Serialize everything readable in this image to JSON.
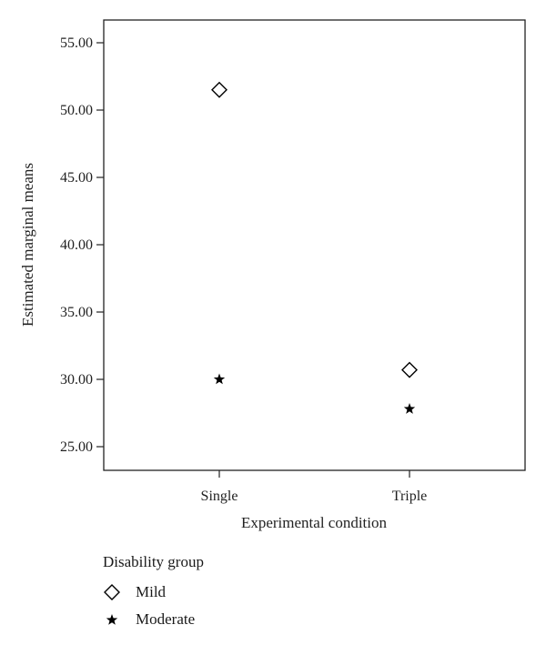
{
  "chart_data": {
    "type": "scatter",
    "categories": [
      "Single",
      "Triple"
    ],
    "xlabel": "Experimental condition",
    "ylabel": "Estimated marginal means",
    "ylim": [
      23.3,
      57.6
    ],
    "yticks": [
      "25.00",
      "30.00",
      "35.00",
      "40.00",
      "45.00",
      "50.00",
      "55.00"
    ],
    "grid": false,
    "legend": {
      "title": "Disability group",
      "placement": "bottom-left"
    },
    "series": [
      {
        "name": "Mild",
        "marker": "diamond",
        "color": "#000000",
        "values": [
          51.5,
          30.7
        ]
      },
      {
        "name": "Moderate",
        "marker": "star",
        "color": "#000000",
        "values": [
          30.0,
          27.8
        ]
      }
    ]
  }
}
